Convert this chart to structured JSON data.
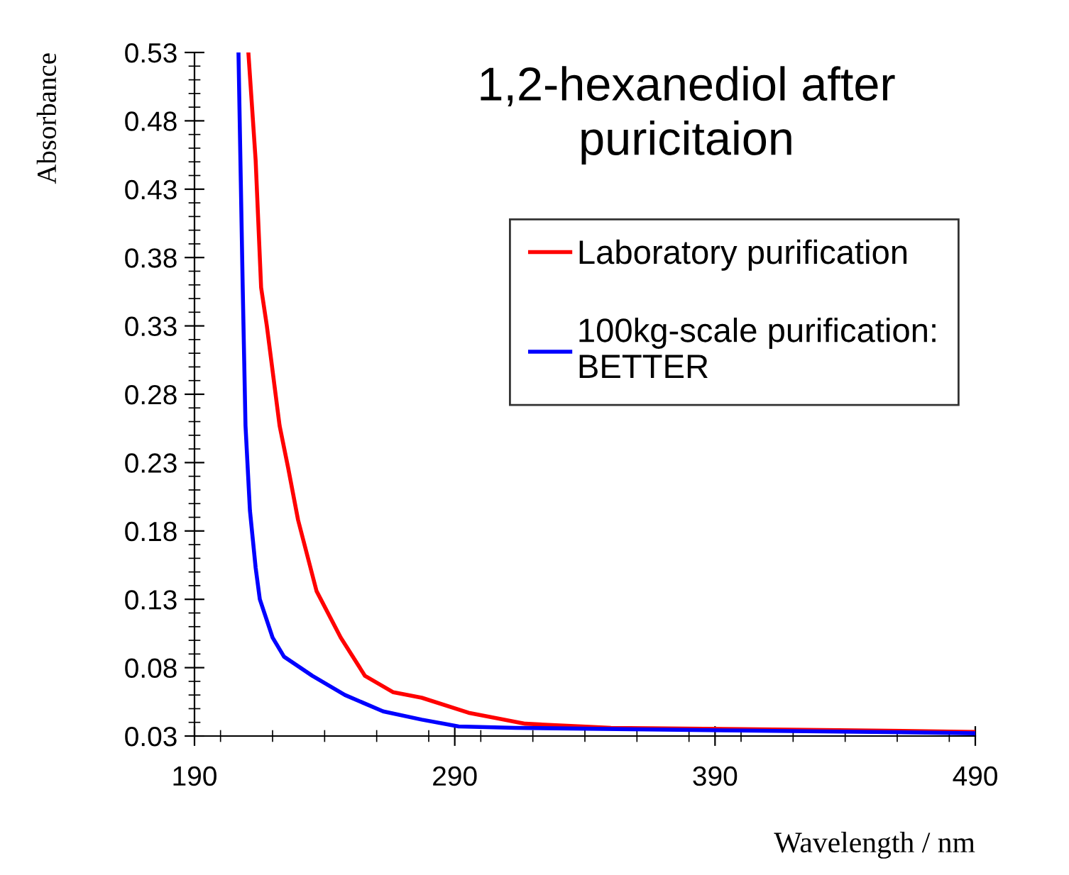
{
  "chart_data": {
    "type": "line",
    "title": "1,2-hexanediol after\npuricitaion",
    "xlabel": "Wavelength / nm",
    "ylabel": "Absorbance",
    "xlim": [
      190,
      490
    ],
    "xticks": [
      190,
      290,
      390,
      490
    ],
    "ylim": [
      0.03,
      0.53
    ],
    "yticks": [
      0.03,
      0.08,
      0.13,
      0.18,
      0.23,
      0.28,
      0.33,
      0.38,
      0.43,
      0.48,
      0.53
    ],
    "grid": false,
    "legend": "right",
    "marker": "none",
    "line_style": "solid",
    "series": [
      {
        "name": "Laboratory purification",
        "color": "#ff0000",
        "x": [
          210.7,
          213.5,
          215.6,
          217.8,
          222.7,
          226.0,
          229.8,
          236.9,
          246.2,
          255.5,
          266.4,
          277.3,
          295.3,
          317.1,
          338.9,
          350,
          400,
          450,
          490
        ],
        "values": [
          0.53,
          0.451,
          0.358,
          0.33,
          0.257,
          0.226,
          0.188,
          0.136,
          0.102,
          0.074,
          0.062,
          0.058,
          0.047,
          0.039,
          0.037,
          0.036,
          0.035,
          0.034,
          0.033
        ]
      },
      {
        "name": "100kg-scale purification:\nBETTER",
        "color": "#0000ff",
        "x": [
          206.9,
          208.5,
          209.6,
          211.3,
          213.5,
          215.1,
          220.0,
          224.4,
          235.3,
          247.8,
          262.5,
          277.3,
          291.5,
          313.3,
          400,
          450,
          490
        ],
        "values": [
          0.53,
          0.361,
          0.257,
          0.195,
          0.153,
          0.13,
          0.102,
          0.088,
          0.074,
          0.06,
          0.048,
          0.042,
          0.037,
          0.036,
          0.034,
          0.033,
          0.032
        ]
      }
    ]
  }
}
